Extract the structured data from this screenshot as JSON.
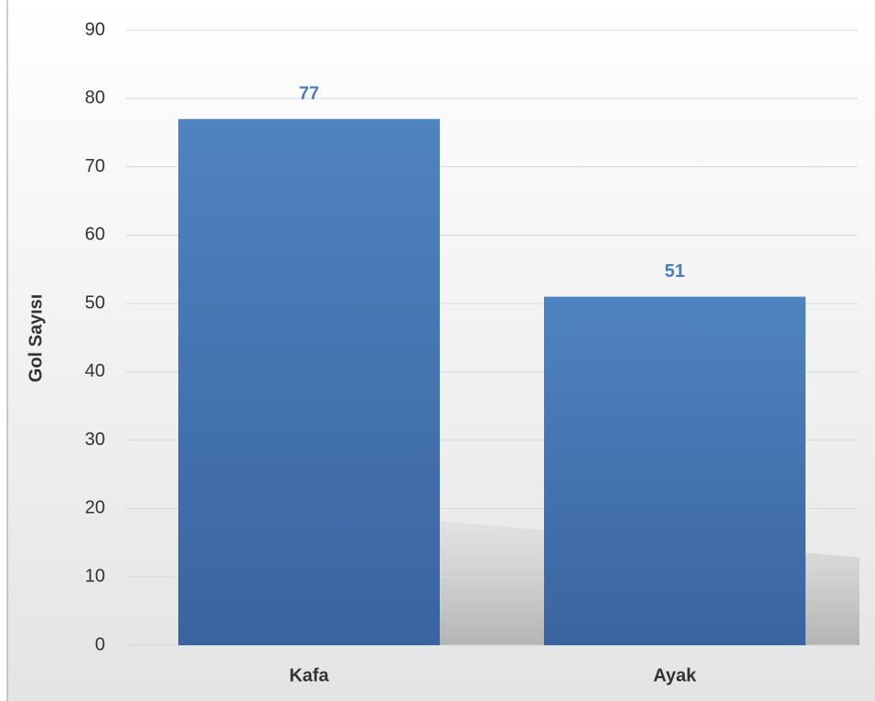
{
  "chart_data": {
    "type": "bar",
    "y_label": "Gol Sayısı",
    "categories": [
      "Kafa",
      "Ayak"
    ],
    "values": [
      77,
      51
    ],
    "color": "#4a7dba",
    "ylim": [
      0,
      90
    ],
    "yticks": [
      0,
      10,
      20,
      30,
      40,
      50,
      60,
      70,
      80,
      90
    ],
    "grid": true,
    "data_labels": true
  }
}
